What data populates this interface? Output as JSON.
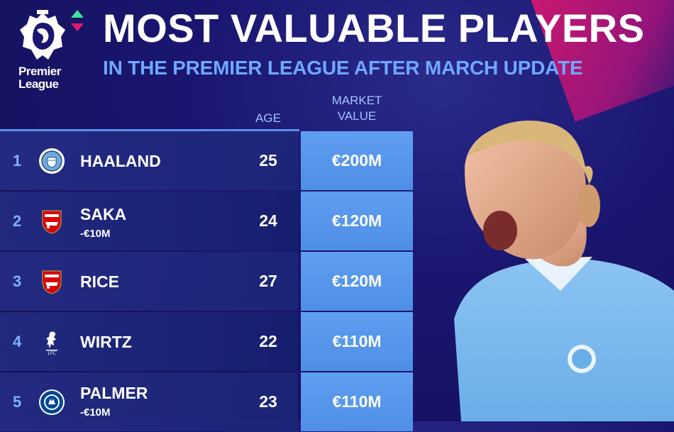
{
  "brand": {
    "line1": "Premier",
    "line2": "League"
  },
  "header": {
    "title": "MOST VALUABLE PLAYERS",
    "subtitle": "IN THE PREMIER LEAGUE AFTER MARCH UPDATE"
  },
  "columns": {
    "age": "AGE",
    "value_line1": "MARKET",
    "value_line2": "VALUE"
  },
  "players": [
    {
      "rank": "1",
      "name": "HAALAND",
      "change": "",
      "age": "25",
      "value": "€200M",
      "club_icon": "man-city-badge"
    },
    {
      "rank": "2",
      "name": "SAKA",
      "change": "-€10M",
      "age": "24",
      "value": "€120M",
      "club_icon": "arsenal-badge"
    },
    {
      "rank": "3",
      "name": "RICE",
      "change": "",
      "age": "27",
      "value": "€120M",
      "club_icon": "arsenal-badge"
    },
    {
      "rank": "4",
      "name": "WIRTZ",
      "change": "",
      "age": "22",
      "value": "€110M",
      "club_icon": "liverpool-badge"
    },
    {
      "rank": "5",
      "name": "PALMER",
      "change": "-€10M",
      "age": "23",
      "value": "€110M",
      "club_icon": "chelsea-badge"
    }
  ],
  "colors": {
    "accent": "#e0186d",
    "value_cell": "#5f9ef0",
    "subtitle": "#6fa8ff",
    "background": "#1a1670"
  }
}
